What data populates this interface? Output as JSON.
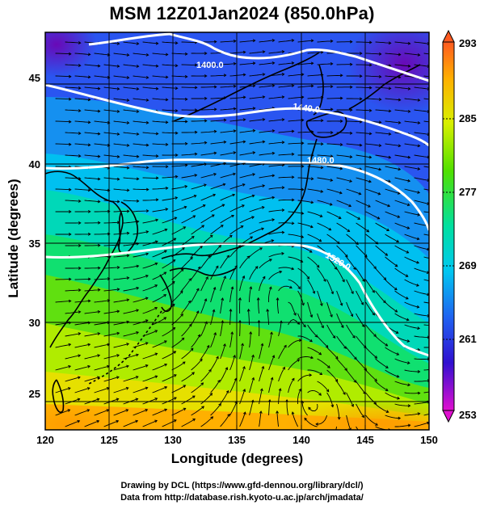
{
  "title": "MSM 12Z01Jan2024 (850.0hPa)",
  "xlabel": "Longitude (degrees)",
  "ylabel": "Latitude  (degrees)",
  "credit_line1": "Drawing by DCL (https://www.gfd-dennou.org/library/dcl/)",
  "credit_line2": "Data from http://database.rish.kyoto-u.ac.jp/arch/jmadata/",
  "chart_data": {
    "type": "heatmap",
    "x_ticks": [
      "120",
      "125",
      "130",
      "135",
      "140",
      "145",
      "150"
    ],
    "y_ticks": [
      "25",
      "30",
      "35",
      "40",
      "45"
    ],
    "xlim": [
      120,
      150
    ],
    "ylim": [
      22.5,
      47.5
    ],
    "colorbar_ticks": [
      "293",
      "285",
      "277",
      "269",
      "261",
      "253"
    ],
    "colorbar_range": [
      253,
      293
    ],
    "contour_labels": [
      "1400.0",
      "1440.0",
      "1480.0",
      "1520.0"
    ],
    "colors": {
      "contour": "#ffffff",
      "coastline": "#000000",
      "stream": "#000000"
    }
  }
}
